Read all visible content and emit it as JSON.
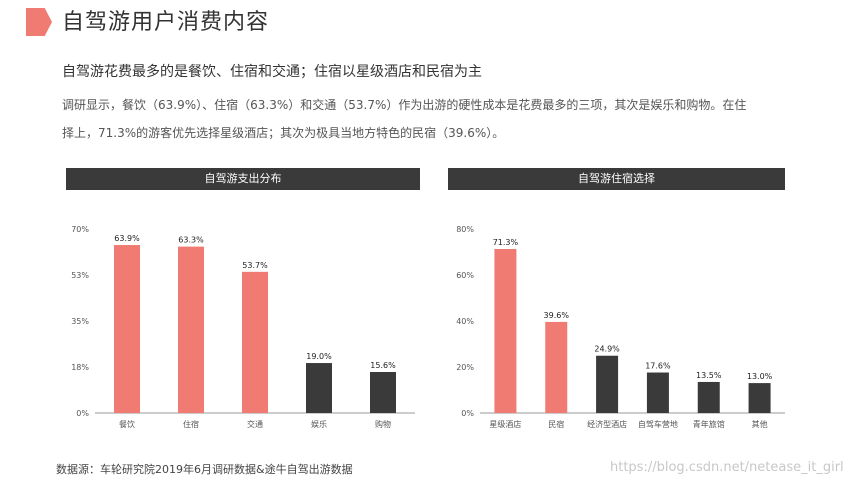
{
  "page": {
    "title": "自驾游用户消费内容",
    "subtitle": "自驾游花费最多的是餐饮、住宿和交通；住宿以星级酒店和民宿为主",
    "desc_line1": "调研显示，餐饮（63.9%）、住宿（63.3%）和交通（53.7%）作为出游的硬性成本是花费最多的三项，其次是娱乐和购物。在住",
    "desc_line2": "择上，71.3%的游客优先选择星级酒店；其次为极具当地方特色的民宿（39.6%）。",
    "source": "数据源：车轮研究院2019年6月调研数据&途牛自驾出游数据",
    "watermark": "https://blog.csdn.net/netease_it_girl"
  },
  "colors": {
    "accent": "#ef7b72",
    "dark": "#3a3a3a",
    "axis": "#999999"
  },
  "chart_data": [
    {
      "type": "bar",
      "title": "自驾游支出分布",
      "categories": [
        "餐饮",
        "住宿",
        "交通",
        "娱乐",
        "购物"
      ],
      "values": [
        63.9,
        63.3,
        53.7,
        19.0,
        15.6
      ],
      "data_labels": [
        "63.9%",
        "63.3%",
        "53.7%",
        "19.0%",
        "15.6%"
      ],
      "bar_colors": [
        "accent",
        "accent",
        "accent",
        "dark",
        "dark"
      ],
      "ylim": [
        0,
        70
      ],
      "yticks": [
        0,
        17.5,
        35,
        52.5,
        70
      ],
      "ytick_labels": [
        "0%",
        "18%",
        "35%",
        "53%",
        "70%"
      ]
    },
    {
      "type": "bar",
      "title": "自驾游住宿选择",
      "categories": [
        "星级酒店",
        "民宿",
        "经济型酒店",
        "自驾车营地",
        "青年旅馆",
        "其他"
      ],
      "values": [
        71.3,
        39.6,
        24.9,
        17.6,
        13.5,
        13.0
      ],
      "data_labels": [
        "71.3%",
        "39.6%",
        "24.9%",
        "17.6%",
        "13.5%",
        "13.0%"
      ],
      "bar_colors": [
        "accent",
        "accent",
        "dark",
        "dark",
        "dark",
        "dark"
      ],
      "ylim": [
        0,
        80
      ],
      "yticks": [
        0,
        20,
        40,
        60,
        80
      ],
      "ytick_labels": [
        "0%",
        "20%",
        "40%",
        "60%",
        "80%"
      ]
    }
  ]
}
